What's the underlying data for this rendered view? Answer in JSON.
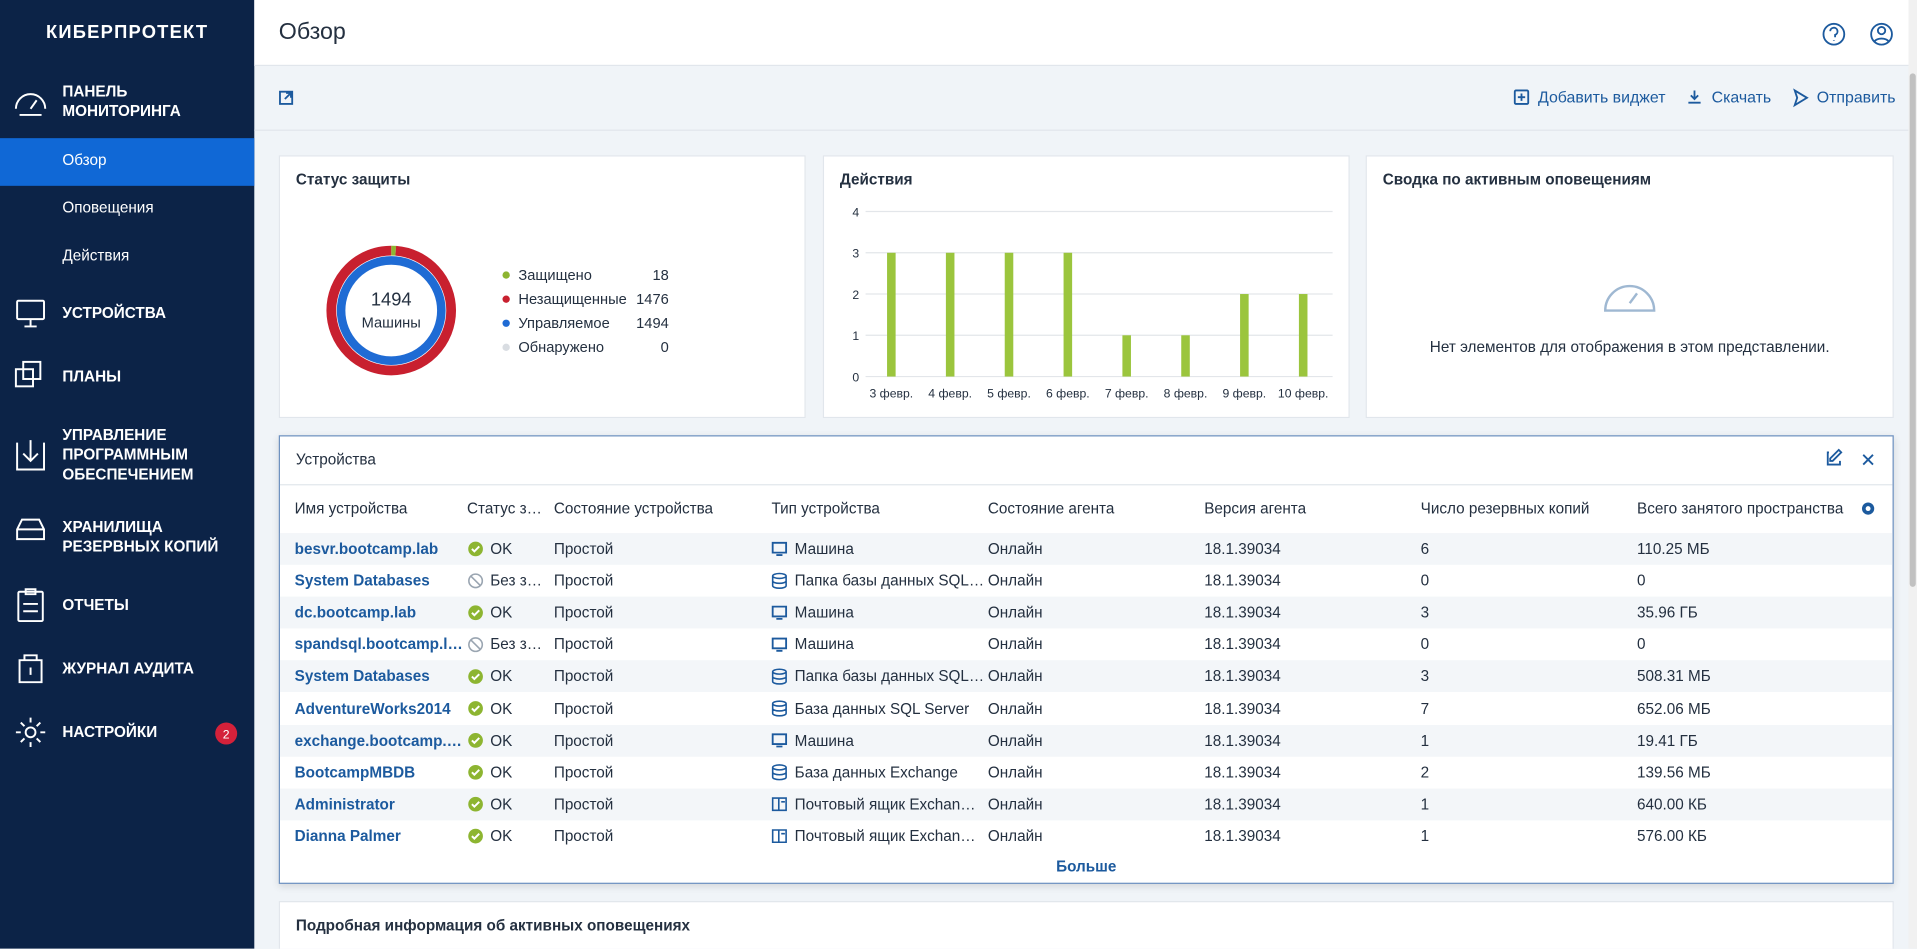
{
  "brand": "КИБЕРПРОТЕКТ",
  "nav": [
    {
      "label": "ПАНЕЛЬ МОНИТОРИНГА",
      "items": [
        "Обзор",
        "Оповещения",
        "Действия"
      ]
    },
    {
      "label": "УСТРОЙСТВА"
    },
    {
      "label": "ПЛАНЫ"
    },
    {
      "label": "УПРАВЛЕНИЕ ПРОГРАММНЫМ ОБЕСПЕЧЕНИЕМ"
    },
    {
      "label": "ХРАНИЛИЩА РЕЗЕРВНЫХ КОПИЙ"
    },
    {
      "label": "ОТЧЕТЫ"
    },
    {
      "label": "ЖУРНАЛ АУДИТА"
    },
    {
      "label": "НАСТРОЙКИ",
      "badge": 2
    }
  ],
  "header": {
    "title": "Обзор"
  },
  "toolbar": [
    "Добавить виджет",
    "Скачать",
    "Отправить"
  ],
  "protection": {
    "title": "Статус защиты",
    "chart_data": {
      "type": "donut",
      "center_value": 1494,
      "center_label": "Машины",
      "categories": [
        "Защищено",
        "Незащищенные",
        "Управляемое",
        "Обнаружено"
      ],
      "values": [
        18,
        1476,
        1494,
        0
      ],
      "colors": [
        "#8db531",
        "#c8202f",
        "#1f6bd4",
        "#d9dde2"
      ]
    }
  },
  "actions": {
    "title": "Действия",
    "chart_data": {
      "type": "bar",
      "categories": [
        "3 февр.",
        "4 февр.",
        "5 февр.",
        "6 февр.",
        "7 февр.",
        "8 февр.",
        "9 февр.",
        "10 февр."
      ],
      "values": [
        3,
        3,
        3,
        3,
        1,
        1,
        2,
        2
      ],
      "color": "#9bc53d",
      "ylim": [
        0,
        4
      ],
      "yticks": [
        0,
        1,
        2,
        3,
        4
      ],
      "grid": true
    }
  },
  "alerts": {
    "title": "Сводка по активным оповещениям",
    "empty": "Нет элементов для отображения в этом представлении."
  },
  "devices": {
    "title": "Устройства",
    "columns": [
      "Имя устройства",
      "Статус з…",
      "Состояние устройства",
      "Тип устройства",
      "Состояние агента",
      "Версия агента",
      "Число резервных копий",
      "Всего занятого пространства"
    ],
    "rows": [
      [
        "besvr.bootcamp.lab",
        "OK",
        "Простой",
        "Машина",
        "Онлайн",
        "18.1.39034",
        6,
        "110.25 МБ"
      ],
      [
        "System Databases",
        "Без з…",
        "Простой",
        "Папка базы данных SQL…",
        "Онлайн",
        "18.1.39034",
        0,
        "0"
      ],
      [
        "dc.bootcamp.lab",
        "OK",
        "Простой",
        "Машина",
        "Онлайн",
        "18.1.39034",
        3,
        "35.96 ГБ"
      ],
      [
        "spandsql.bootcamp.l…",
        "Без з…",
        "Простой",
        "Машина",
        "Онлайн",
        "18.1.39034",
        0,
        "0"
      ],
      [
        "System Databases",
        "OK",
        "Простой",
        "Папка базы данных SQL…",
        "Онлайн",
        "18.1.39034",
        3,
        "508.31 МБ"
      ],
      [
        "AdventureWorks2014",
        "OK",
        "Простой",
        "База данных SQL Server",
        "Онлайн",
        "18.1.39034",
        7,
        "652.06 МБ"
      ],
      [
        "exchange.bootcamp.…",
        "OK",
        "Простой",
        "Машина",
        "Онлайн",
        "18.1.39034",
        1,
        "19.41 ГБ"
      ],
      [
        "BootcampMBDB",
        "OK",
        "Простой",
        "База данных Exchange",
        "Онлайн",
        "18.1.39034",
        2,
        "139.56 МБ"
      ],
      [
        "Administrator",
        "OK",
        "Простой",
        "Почтовый ящик Exchan…",
        "Онлайн",
        "18.1.39034",
        1,
        "640.00 КБ"
      ],
      [
        "Dianna Palmer",
        "OK",
        "Простой",
        "Почтовый ящик Exchan…",
        "Онлайн",
        "18.1.39034",
        1,
        "576.00 КБ"
      ]
    ],
    "more": "Больше"
  },
  "details": {
    "title": "Подробная информация об активных оповещениях"
  }
}
